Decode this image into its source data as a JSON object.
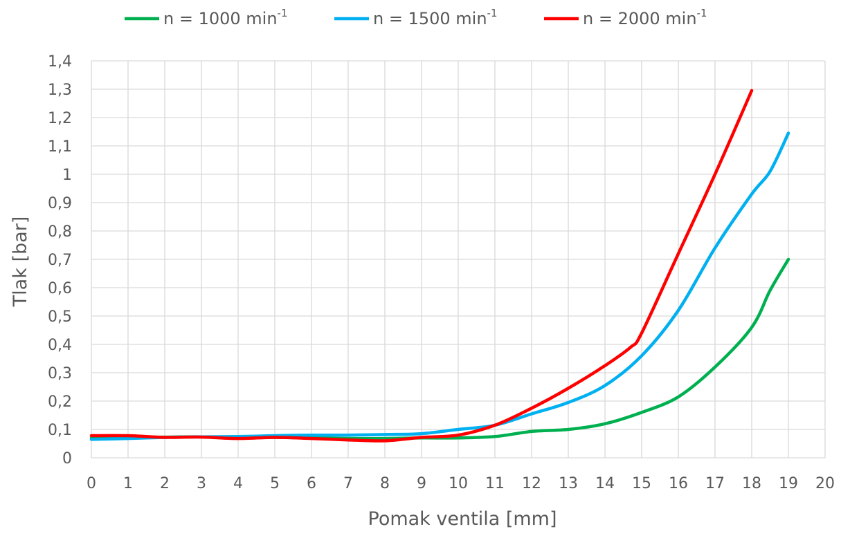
{
  "chart_data": {
    "type": "line",
    "xlabel": "Pomak ventila [mm]",
    "ylabel": "Tlak [bar]",
    "xlim": [
      0,
      20
    ],
    "ylim": [
      0,
      1.4
    ],
    "x_ticks": [
      "0",
      "1",
      "2",
      "3",
      "4",
      "5",
      "6",
      "7",
      "8",
      "9",
      "10",
      "11",
      "12",
      "13",
      "14",
      "15",
      "16",
      "17",
      "18",
      "19",
      "20"
    ],
    "y_ticks": [
      "0",
      "0,1",
      "0,2",
      "0,3",
      "0,4",
      "0,5",
      "0,6",
      "0,7",
      "0,8",
      "0,9",
      "1",
      "1,1",
      "1,2",
      "1,3",
      "1,4"
    ],
    "grid": true,
    "legend_position": "top",
    "series": [
      {
        "name": "n = 1000 min",
        "name_sup": "-1",
        "color": "#00b050",
        "x": [
          0,
          1,
          2,
          3,
          4,
          5,
          6,
          7,
          8,
          9,
          10,
          11,
          12,
          13,
          14,
          15,
          16,
          17,
          18,
          18.5,
          19
        ],
        "values": [
          0.07,
          0.072,
          0.073,
          0.074,
          0.072,
          0.072,
          0.07,
          0.068,
          0.068,
          0.07,
          0.07,
          0.075,
          0.093,
          0.1,
          0.12,
          0.16,
          0.215,
          0.32,
          0.46,
          0.59,
          0.7
        ]
      },
      {
        "name": "n = 1500 min",
        "name_sup": "-1",
        "color": "#00b0f0",
        "x": [
          0,
          1,
          2,
          3,
          4,
          5,
          6,
          7,
          8,
          9,
          10,
          11,
          12,
          13,
          14,
          15,
          16,
          17,
          18,
          18.5,
          19
        ],
        "values": [
          0.065,
          0.068,
          0.072,
          0.074,
          0.075,
          0.078,
          0.08,
          0.08,
          0.082,
          0.085,
          0.1,
          0.115,
          0.155,
          0.195,
          0.255,
          0.36,
          0.52,
          0.74,
          0.93,
          1.01,
          1.145
        ]
      },
      {
        "name": "n = 2000 min",
        "name_sup": "-1",
        "color": "#ff0000",
        "x": [
          0,
          1,
          2,
          3,
          4,
          5,
          6,
          7,
          8,
          9,
          10,
          11,
          12,
          13,
          14,
          14.7,
          15,
          16,
          17,
          18
        ],
        "values": [
          0.078,
          0.078,
          0.072,
          0.073,
          0.068,
          0.072,
          0.068,
          0.063,
          0.06,
          0.072,
          0.08,
          0.115,
          0.175,
          0.245,
          0.325,
          0.39,
          0.44,
          0.72,
          1.0,
          1.295
        ]
      }
    ]
  }
}
